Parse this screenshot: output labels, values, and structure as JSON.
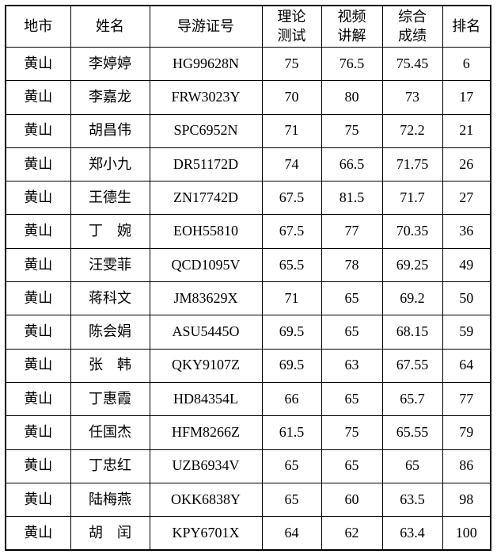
{
  "table": {
    "headers": [
      "地市",
      "姓名",
      "导游证号",
      "理论\n测试",
      "视频\n讲解",
      "综合\n成绩",
      "排名"
    ],
    "rows": [
      [
        "黄山",
        "李婷婷",
        "HG99628N",
        "75",
        "76.5",
        "75.45",
        "6"
      ],
      [
        "黄山",
        "李嘉龙",
        "FRW3023Y",
        "70",
        "80",
        "73",
        "17"
      ],
      [
        "黄山",
        "胡昌伟",
        "SPC6952N",
        "71",
        "75",
        "72.2",
        "21"
      ],
      [
        "黄山",
        "郑小九",
        "DR51172D",
        "74",
        "66.5",
        "71.75",
        "26"
      ],
      [
        "黄山",
        "王德生",
        "ZN17742D",
        "67.5",
        "81.5",
        "71.7",
        "27"
      ],
      [
        "黄山",
        "丁　婉",
        "EOH55810",
        "67.5",
        "77",
        "70.35",
        "36"
      ],
      [
        "黄山",
        "汪雯菲",
        "QCD1095V",
        "65.5",
        "78",
        "69.25",
        "49"
      ],
      [
        "黄山",
        "蒋科文",
        "JM83629X",
        "71",
        "65",
        "69.2",
        "50"
      ],
      [
        "黄山",
        "陈会娟",
        "ASU5445O",
        "69.5",
        "65",
        "68.15",
        "59"
      ],
      [
        "黄山",
        "张　韩",
        "QKY9107Z",
        "69.5",
        "63",
        "67.55",
        "64"
      ],
      [
        "黄山",
        "丁惠霞",
        "HD84354L",
        "66",
        "65",
        "65.7",
        "77"
      ],
      [
        "黄山",
        "任国杰",
        "HFM8266Z",
        "61.5",
        "75",
        "65.55",
        "79"
      ],
      [
        "黄山",
        "丁忠红",
        "UZB6934V",
        "65",
        "65",
        "65",
        "86"
      ],
      [
        "黄山",
        "陆梅燕",
        "OKK6838Y",
        "65",
        "60",
        "63.5",
        "98"
      ],
      [
        "黄山",
        "胡　闰",
        "KPY6701X",
        "64",
        "62",
        "63.4",
        "100"
      ]
    ]
  },
  "colors": {
    "border": "#000000",
    "text": "#000000",
    "background": "#ffffff"
  }
}
